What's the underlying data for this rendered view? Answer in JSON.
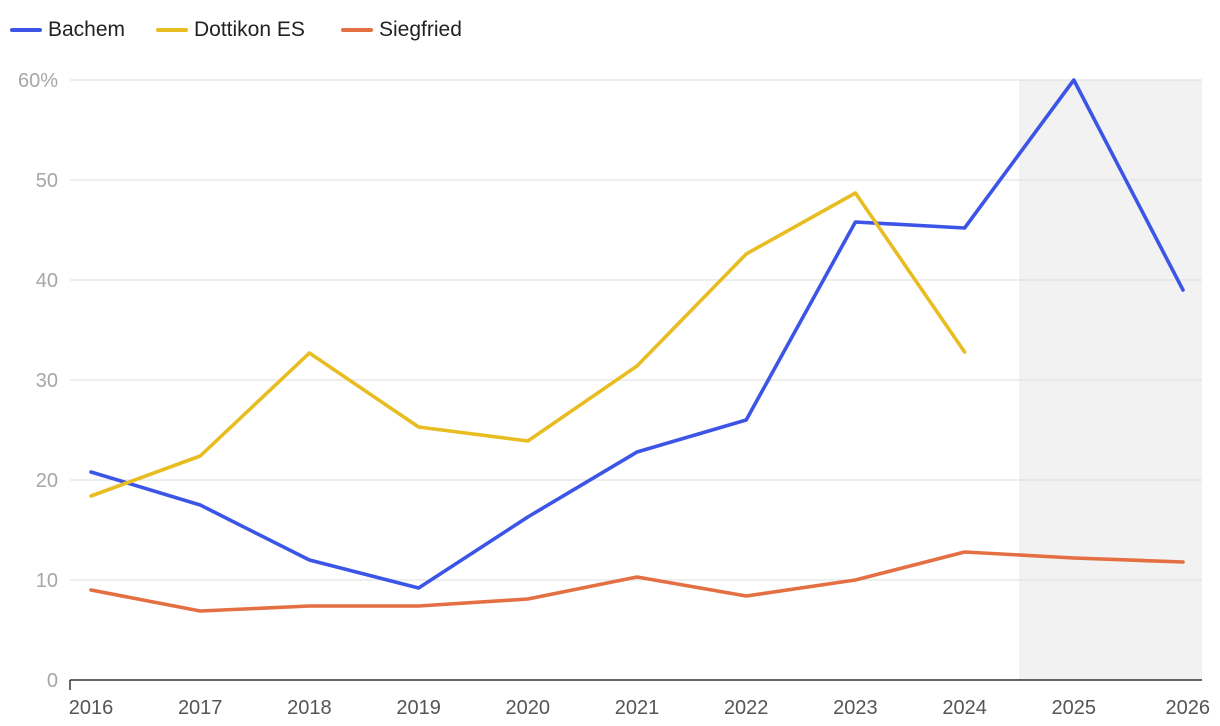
{
  "chart_data": {
    "type": "line",
    "title": "",
    "xlabel": "",
    "ylabel": "",
    "legend_position": "top-left",
    "categories": [
      "2016",
      "2017",
      "2018",
      "2019",
      "2020",
      "2021",
      "2022",
      "2023",
      "2024",
      "2025",
      "2026"
    ],
    "y_ticks": [
      {
        "value": 0,
        "label": "0"
      },
      {
        "value": 10,
        "label": "10"
      },
      {
        "value": 20,
        "label": "20"
      },
      {
        "value": 30,
        "label": "30"
      },
      {
        "value": 40,
        "label": "40"
      },
      {
        "value": 50,
        "label": "50"
      },
      {
        "value": 60,
        "label": "60%"
      }
    ],
    "ylim": [
      0,
      60
    ],
    "grid": true,
    "forecast_shading": {
      "from": "2024",
      "to": "2026",
      "color": "#f2f2f2"
    },
    "series": [
      {
        "name": "Bachem",
        "color": "#3d55e6",
        "values": [
          20.8,
          17.5,
          12.0,
          9.2,
          16.3,
          22.8,
          26.0,
          45.8,
          45.2,
          60.0,
          39.0
        ]
      },
      {
        "name": "Dottikon ES",
        "color": "#e8bd22",
        "values": [
          18.4,
          22.4,
          32.7,
          25.3,
          23.9,
          31.4,
          42.6,
          48.7,
          32.8,
          null,
          null
        ]
      },
      {
        "name": "Siegfried",
        "color": "#e46f43",
        "values": [
          9.0,
          6.9,
          7.4,
          7.4,
          8.1,
          10.3,
          8.4,
          10.0,
          12.8,
          12.2,
          11.8
        ]
      }
    ]
  }
}
